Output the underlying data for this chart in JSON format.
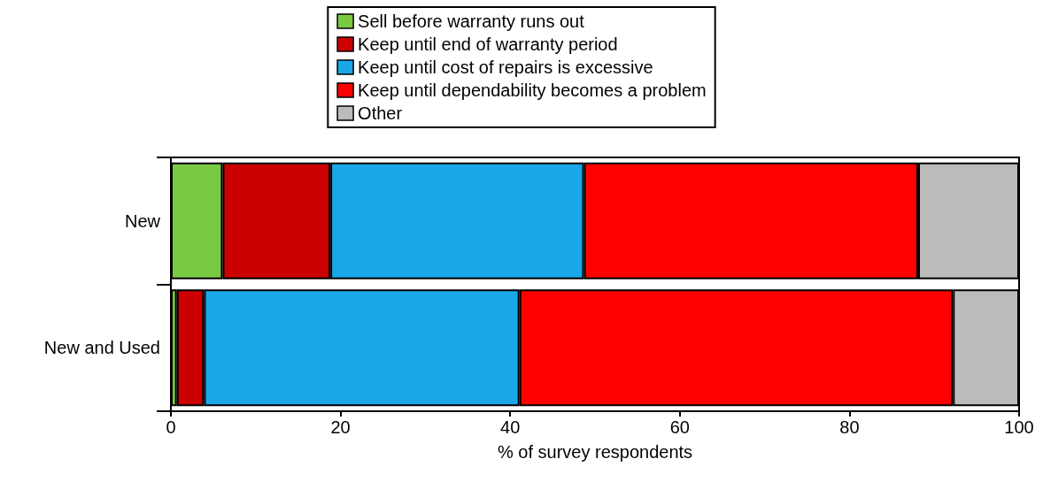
{
  "chart_data": {
    "type": "bar",
    "orientation": "horizontal",
    "stacked": true,
    "categories": [
      "New",
      "New and Used"
    ],
    "series": [
      {
        "name": "Sell before warranty runs out",
        "color": "#7ac943",
        "values": [
          6.1,
          0.7
        ]
      },
      {
        "name": "Keep until end of warranty period",
        "color": "#cc0000",
        "values": [
          12.7,
          3.2
        ]
      },
      {
        "name": "Keep until cost of repairs is excessive",
        "color": "#1aa7e8",
        "values": [
          29.9,
          37.2
        ]
      },
      {
        "name": "Keep until dependability becomes a problem",
        "color": "#ff0000",
        "values": [
          39.4,
          51.1
        ]
      },
      {
        "name": "Other",
        "color": "#bbbbbb",
        "values": [
          11.9,
          7.8
        ]
      }
    ],
    "xlabel": "% of survey respondents",
    "xlim": [
      0,
      100
    ],
    "xticks": [
      0,
      20,
      40,
      60,
      80,
      100
    ],
    "grid": false,
    "legend": "top"
  }
}
